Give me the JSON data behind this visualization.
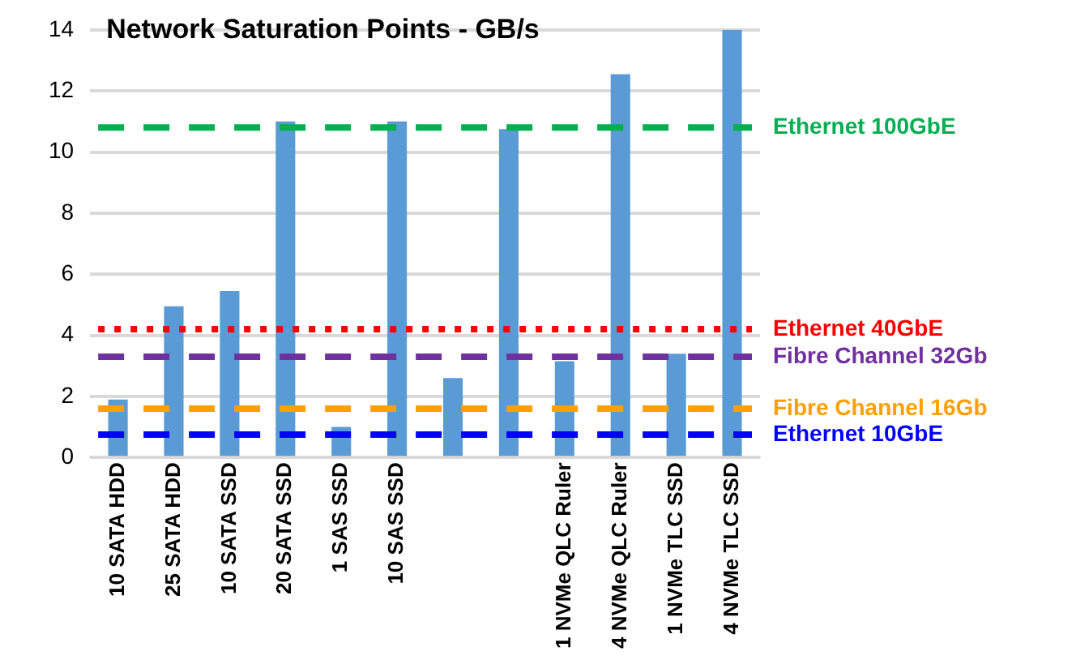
{
  "chart_data": {
    "type": "bar",
    "title": "Network Saturation Points - GB/s",
    "categories": [
      "10 SATA HDD",
      "25 SATA HDD",
      "10 SATA SSD",
      "20 SATA SSD",
      "1 SAS SSD",
      "10 SAS SSD",
      null,
      null,
      "1 NVMe QLC Ruler",
      "4 NVMe QLC Ruler",
      "1 NVMe TLC SSD",
      "4 NVMe TLC SSD"
    ],
    "values": [
      1.9,
      4.95,
      5.45,
      11.0,
      1.0,
      11.0,
      2.6,
      10.75,
      3.15,
      12.55,
      3.4,
      14
    ],
    "color": "#5b9bd5",
    "ylim": [
      0,
      14
    ],
    "yticks": [
      0,
      2,
      4,
      6,
      8,
      10,
      12,
      14
    ],
    "grid": "y",
    "legend": false,
    "ref_lines": [
      {
        "axis": "y",
        "value": 10.8,
        "label": "Ethernet 100GbE",
        "color": "#00b050",
        "line_style": "dashed"
      },
      {
        "axis": "y",
        "value": 4.2,
        "label": "Ethernet 40GbE",
        "color": "#ff0000",
        "line_style": "dotted"
      },
      {
        "axis": "y",
        "value": 3.3,
        "label": "Fibre Channel 32Gb",
        "color": "#7030a0",
        "line_style": "dashed"
      },
      {
        "axis": "y",
        "value": 1.6,
        "label": "Fibre Channel 16Gb",
        "color": "#ffa000",
        "line_style": "dashed"
      },
      {
        "axis": "y",
        "value": 0.75,
        "label": "Ethernet 10GbE",
        "color": "#0000ff",
        "line_style": "dashed"
      }
    ]
  }
}
